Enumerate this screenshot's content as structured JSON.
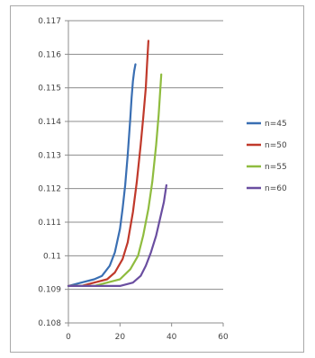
{
  "chart_data": {
    "type": "line",
    "title": "",
    "xlabel": "",
    "ylabel": "",
    "xlim": [
      0,
      60
    ],
    "ylim": [
      0.108,
      0.117
    ],
    "x_ticks": [
      "0",
      "20",
      "40",
      "60"
    ],
    "y_ticks": [
      "0.108",
      "0.109",
      "0.11",
      "0.111",
      "0.112",
      "0.113",
      "0.114",
      "0.115",
      "0.116",
      "0.117"
    ],
    "grid": "horizontal",
    "legend_position": "right",
    "series": [
      {
        "name": "n=45",
        "color": "#3a6fb3",
        "x": [
          0,
          5,
          10,
          13,
          16,
          18,
          20,
          21,
          22,
          23,
          24,
          24.5,
          25,
          25.5,
          26
        ],
        "y": [
          0.1091,
          0.1092,
          0.1093,
          0.1094,
          0.1097,
          0.1101,
          0.1108,
          0.1114,
          0.1121,
          0.113,
          0.1141,
          0.1147,
          0.1152,
          0.1155,
          0.1157
        ]
      },
      {
        "name": "n=50",
        "color": "#c0392b",
        "x": [
          0,
          5,
          10,
          15,
          18,
          21,
          23,
          25,
          26.5,
          28,
          29,
          30,
          30.5,
          31
        ],
        "y": [
          0.1091,
          0.1091,
          0.1092,
          0.1093,
          0.1095,
          0.1099,
          0.1104,
          0.1113,
          0.1122,
          0.1133,
          0.1141,
          0.115,
          0.1157,
          0.1164
        ]
      },
      {
        "name": "n=55",
        "color": "#8fbc3f",
        "x": [
          0,
          5,
          10,
          15,
          20,
          24,
          27,
          29,
          31,
          32.5,
          34,
          35,
          36
        ],
        "y": [
          0.1091,
          0.1091,
          0.1091,
          0.1092,
          0.1093,
          0.1096,
          0.11,
          0.1106,
          0.1114,
          0.1122,
          0.1133,
          0.1142,
          0.1154
        ]
      },
      {
        "name": "n=60",
        "color": "#6a4ea0",
        "x": [
          0,
          5,
          10,
          15,
          20,
          25,
          28,
          30,
          32,
          34,
          35.5,
          37,
          38
        ],
        "y": [
          0.1091,
          0.1091,
          0.1091,
          0.1091,
          0.1091,
          0.1092,
          0.1094,
          0.1097,
          0.1101,
          0.1106,
          0.1111,
          0.1116,
          0.1121
        ]
      }
    ]
  }
}
